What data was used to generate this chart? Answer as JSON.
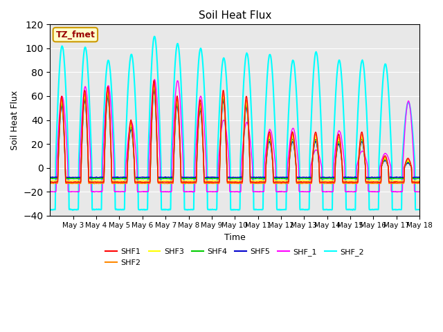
{
  "title": "Soil Heat Flux",
  "xlabel": "Time",
  "ylabel": "Soil Heat Flux",
  "ylim": [
    -40,
    120
  ],
  "xlim_days": [
    2.0,
    18.0
  ],
  "annotation_text": "TZ_fmet",
  "annotation_bg": "#ffffcc",
  "annotation_border": "#cc9900",
  "annotation_text_color": "#990000",
  "series": {
    "SHF1": {
      "color": "#ff0000",
      "lw": 1.0
    },
    "SHF2": {
      "color": "#ff8800",
      "lw": 1.0
    },
    "SHF3": {
      "color": "#ffff00",
      "lw": 1.0
    },
    "SHF4": {
      "color": "#00cc00",
      "lw": 1.0
    },
    "SHF5": {
      "color": "#0000cc",
      "lw": 1.0
    },
    "SHF_1": {
      "color": "#ff00ff",
      "lw": 1.0
    },
    "SHF_2": {
      "color": "#00ffff",
      "lw": 1.5
    }
  },
  "tick_dates": [
    "May 3",
    "May 4",
    "May 5",
    "May 6",
    "May 7",
    "May 8",
    "May 9",
    "May 10",
    "May 11",
    "May 12",
    "May 13",
    "May 14",
    "May 15",
    "May 16",
    "May 17",
    "May 18"
  ],
  "tick_positions": [
    3,
    4,
    5,
    6,
    7,
    8,
    9,
    10,
    11,
    12,
    13,
    14,
    15,
    16,
    17,
    18
  ],
  "bg_color": "#e8e8e8",
  "fig_bg": "#ffffff",
  "grid_color": "#ffffff",
  "yticks": [
    -40,
    -20,
    0,
    20,
    40,
    60,
    80,
    100,
    120
  ],
  "legend_order": [
    "SHF1",
    "SHF2",
    "SHF3",
    "SHF4",
    "SHF5",
    "SHF_1",
    "SHF_2"
  ]
}
